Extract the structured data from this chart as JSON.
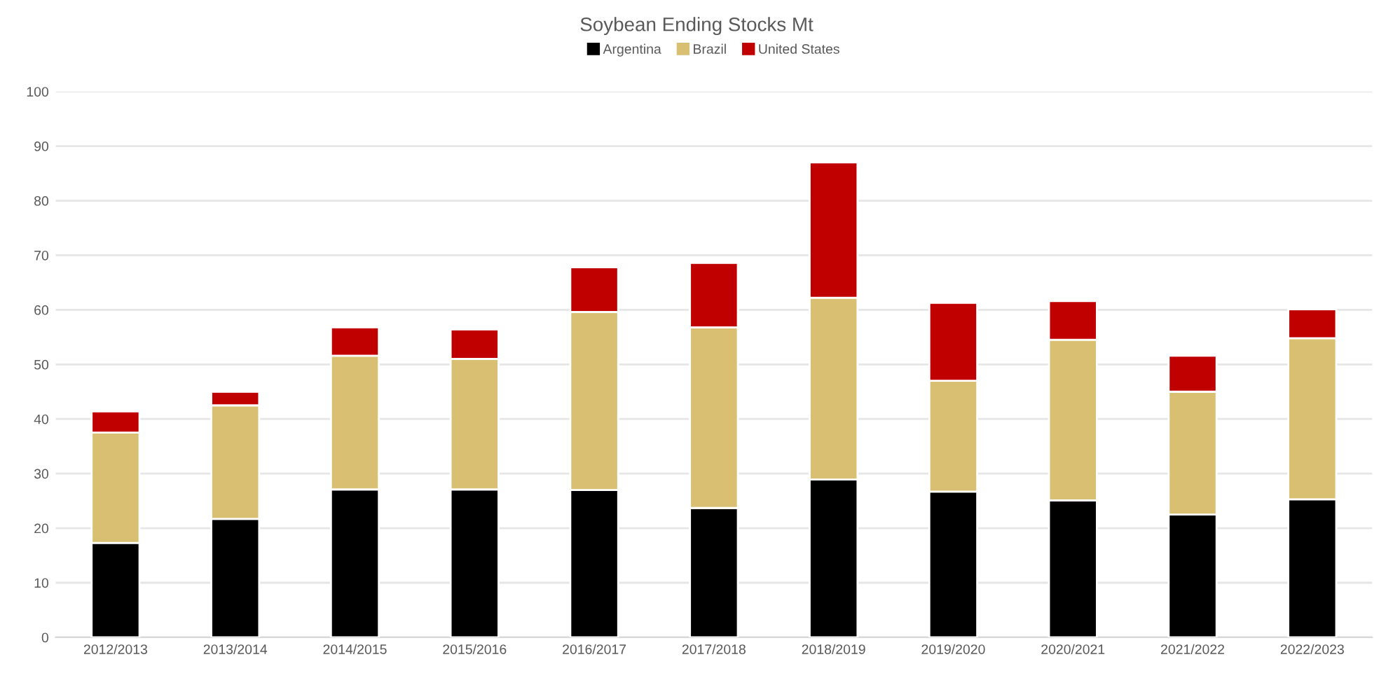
{
  "chart_data": {
    "type": "bar",
    "title": "Soybean Ending Stocks Mt",
    "stacked": true,
    "categories": [
      "2012/2013",
      "2013/2014",
      "2014/2015",
      "2015/2016",
      "2016/2017",
      "2017/2018",
      "2018/2019",
      "2019/2020",
      "2020/2021",
      "2021/2022",
      "2022/2023"
    ],
    "series": [
      {
        "name": "Argentina",
        "color": "#000000",
        "values": [
          17.3,
          21.7,
          27.1,
          27.1,
          27.0,
          23.7,
          28.9,
          26.7,
          25.1,
          22.5,
          25.3
        ]
      },
      {
        "name": "Brazil",
        "color": "#d8bf72",
        "values": [
          20.2,
          20.8,
          24.5,
          23.9,
          32.6,
          33.1,
          33.3,
          20.3,
          29.4,
          22.5,
          29.5
        ]
      },
      {
        "name": "United States",
        "color": "#c00000",
        "values": [
          3.9,
          2.5,
          5.2,
          5.4,
          8.2,
          11.8,
          24.8,
          14.3,
          7.1,
          6.6,
          5.3
        ]
      }
    ],
    "ylim": [
      0,
      100
    ],
    "yticks": [
      0,
      10,
      20,
      30,
      40,
      50,
      60,
      70,
      80,
      90,
      100
    ],
    "grid": "y",
    "legend": "top"
  }
}
